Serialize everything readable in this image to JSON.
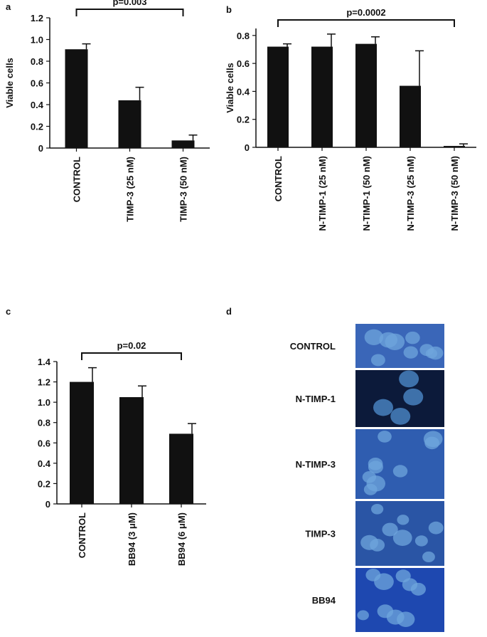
{
  "chart_data": [
    {
      "type": "bar",
      "panel_label": "a",
      "ylabel": "Viable cells",
      "annotation": "p=0.003",
      "categories": [
        "CONTROL",
        "TIMP-3 (25 nM)",
        "TIMP-3 (50 nM)"
      ],
      "values": [
        0.91,
        0.44,
        0.07
      ],
      "errors": [
        0.05,
        0.12,
        0.05
      ],
      "color": "#111111",
      "ylim": [
        0,
        1.2
      ],
      "yticks": [
        0,
        0.2,
        0.4,
        0.6,
        0.8,
        {
          "value": 1,
          "label": "1.0"
        },
        1.2
      ]
    },
    {
      "type": "bar",
      "panel_label": "b",
      "ylabel": "Viable cells",
      "annotation": "p=0.0002",
      "categories": [
        "CONTROL",
        "N-TIMP-1 (25 nM)",
        "N-TIMP-1 (50 nM)",
        "N-TIMP-3 (25 nM)",
        "N-TIMP-3 (50 nM)"
      ],
      "values": [
        0.72,
        0.72,
        0.74,
        0.44,
        0.01
      ],
      "errors": [
        0.02,
        0.09,
        0.05,
        0.25,
        0.015
      ],
      "color": "#111111",
      "ylim": [
        0,
        0.85
      ],
      "yticks": [
        0,
        0.2,
        0.4,
        0.6,
        0.8
      ]
    },
    {
      "type": "bar",
      "panel_label": "c",
      "annotation": "p=0.02",
      "categories": [
        "CONTROL",
        "BB94 (3 μM)",
        "BB94 (6 μM)"
      ],
      "values": [
        1.2,
        1.05,
        0.69
      ],
      "errors": [
        0.14,
        0.11,
        0.1
      ],
      "color": "#111111",
      "ylim": [
        0,
        1.4
      ],
      "yticks": [
        0,
        0.2,
        0.4,
        0.6,
        0.8,
        {
          "value": 1,
          "label": "1.0"
        },
        1.2,
        1.4
      ]
    }
  ],
  "image_panel": {
    "panel_label": "d",
    "rows": [
      "CONTROL",
      "N-TIMP-1",
      "N-TIMP-3",
      "TIMP-3",
      "BB94"
    ]
  }
}
